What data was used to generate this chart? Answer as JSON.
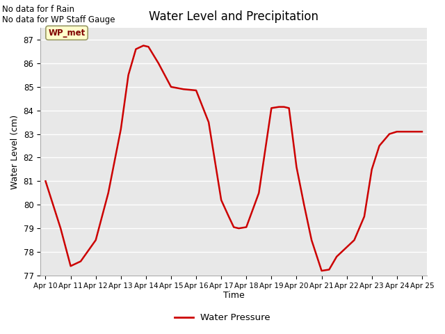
{
  "title": "Water Level and Precipitation",
  "xlabel": "Time",
  "ylabel": "Water Level (cm)",
  "legend_label": "Water Pressure",
  "line_color": "#cc0000",
  "line_width": 1.8,
  "background_color": "#e8e8e8",
  "fig_bg": "#ffffff",
  "ylim": [
    77.0,
    87.5
  ],
  "yticks": [
    77.0,
    78.0,
    79.0,
    80.0,
    81.0,
    82.0,
    83.0,
    84.0,
    85.0,
    86.0,
    87.0
  ],
  "xtick_labels": [
    "Apr 10",
    "Apr 11",
    "Apr 12",
    "Apr 13",
    "Apr 14",
    "Apr 15",
    "Apr 16",
    "Apr 17",
    "Apr 18",
    "Apr 19",
    "Apr 20",
    "Apr 21",
    "Apr 22",
    "Apr 23",
    "Apr 24",
    "Apr 25"
  ],
  "annotations": [
    "No data for f Rain",
    "No data for WP Staff Gauge"
  ],
  "wp_met_label": "WP_met",
  "wp_met_box_color": "#ffffcc",
  "wp_met_text_color": "#800000",
  "wp_met_edge_color": "#999966",
  "x_values": [
    0,
    0.6,
    1.0,
    1.4,
    2.0,
    2.5,
    3.0,
    3.3,
    3.6,
    3.9,
    4.1,
    4.5,
    5.0,
    5.5,
    6.0,
    6.5,
    7.0,
    7.3,
    7.5,
    7.7,
    8.0,
    8.5,
    9.0,
    9.3,
    9.5,
    9.7,
    10.0,
    10.3,
    10.6,
    11.0,
    11.3,
    11.6,
    12.0,
    12.3,
    12.7,
    13.0,
    13.3,
    13.7,
    14.0,
    14.5,
    15.0
  ],
  "y_values": [
    81.0,
    79.0,
    77.4,
    77.6,
    78.5,
    80.5,
    83.2,
    85.5,
    86.6,
    86.75,
    86.7,
    86.0,
    85.0,
    84.9,
    84.85,
    83.5,
    80.2,
    79.5,
    79.05,
    79.0,
    79.05,
    80.5,
    84.1,
    84.15,
    84.15,
    84.1,
    81.6,
    80.0,
    78.5,
    77.2,
    77.25,
    77.8,
    78.2,
    78.5,
    79.5,
    81.5,
    82.5,
    83.0,
    83.1,
    83.1,
    83.1
  ]
}
